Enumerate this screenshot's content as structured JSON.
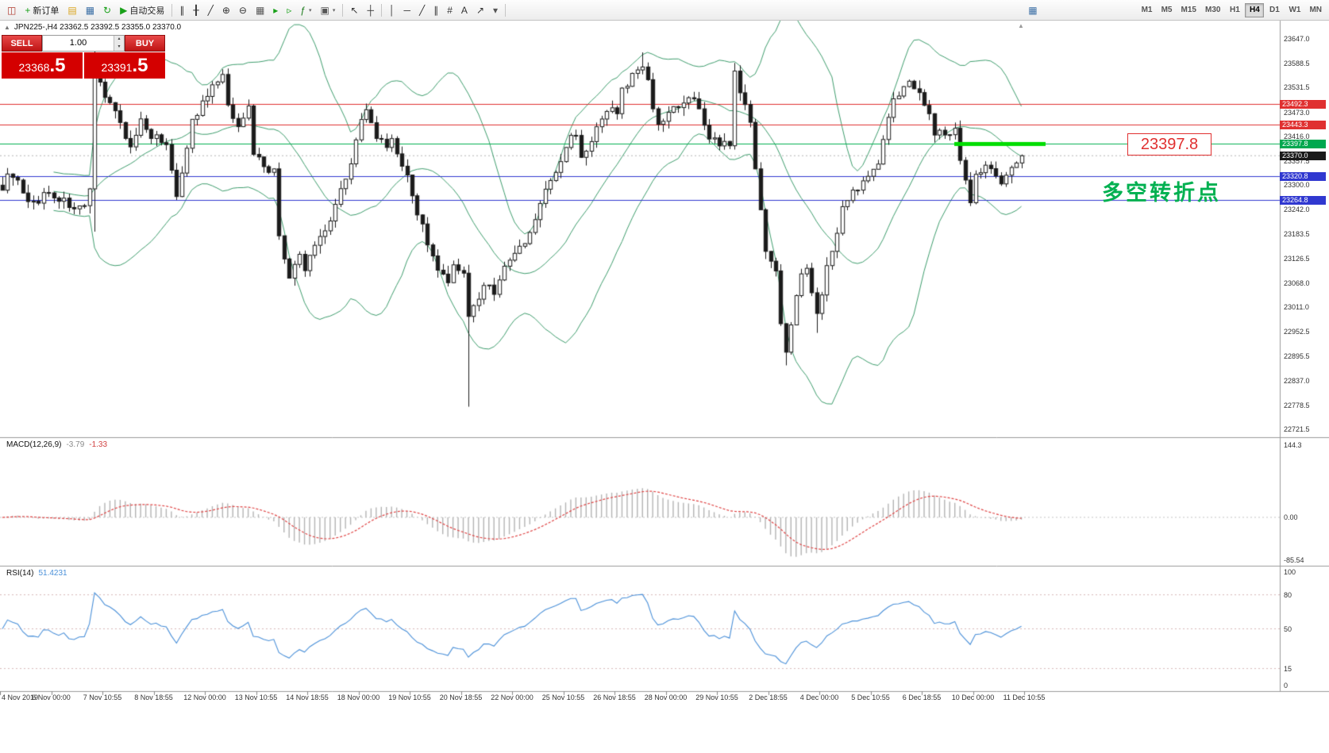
{
  "toolbar": {
    "items": [
      {
        "name": "chart-window-icon",
        "glyph": "◫",
        "color": "#b03a2e"
      },
      {
        "name": "new-order-button",
        "glyph": "+",
        "glyph_color": "#18a018",
        "label": "新订单"
      },
      {
        "name": "profiles-icon",
        "glyph": "▤",
        "color": "#d9a520"
      },
      {
        "name": "charts-grid-icon",
        "glyph": "▦",
        "color": "#3a6ea5"
      },
      {
        "name": "refresh-icon",
        "glyph": "↻",
        "color": "#18a018"
      },
      {
        "name": "autotrade-button",
        "glyph": "▶",
        "glyph_color": "#18a018",
        "label": "自动交易"
      },
      {
        "name": "sep"
      },
      {
        "name": "bar-chart-icon",
        "glyph": "∥",
        "color": "#333333"
      },
      {
        "name": "candlestick-chart-icon",
        "glyph": "╂",
        "color": "#333333"
      },
      {
        "name": "line-chart-icon",
        "glyph": "╱",
        "color": "#333333"
      },
      {
        "name": "zoom-in-icon",
        "glyph": "⊕",
        "color": "#333333"
      },
      {
        "name": "zoom-out-icon",
        "glyph": "⊖",
        "color": "#333333"
      },
      {
        "name": "grid-icon",
        "glyph": "▦",
        "color": "#555555"
      },
      {
        "name": "auto-scroll-icon",
        "glyph": "▸",
        "color": "#18a018"
      },
      {
        "name": "chart-shift-icon",
        "glyph": "▹",
        "color": "#18a018"
      },
      {
        "name": "indicators-icon",
        "glyph": "ƒ",
        "color": "#1a7a1a",
        "dropdown": true
      },
      {
        "name": "templates-icon",
        "glyph": "▣",
        "color": "#555555",
        "dropdown": true
      },
      {
        "name": "sep"
      },
      {
        "name": "cursor-icon",
        "glyph": "↖",
        "color": "#333333"
      },
      {
        "name": "crosshair-icon",
        "glyph": "┼",
        "color": "#333333"
      },
      {
        "name": "sep"
      },
      {
        "name": "vertical-line-icon",
        "glyph": "│",
        "color": "#333333"
      },
      {
        "name": "horizontal-line-icon",
        "glyph": "─",
        "color": "#333333"
      },
      {
        "name": "trendline-icon",
        "glyph": "╱",
        "color": "#333333"
      },
      {
        "name": "equidistant-channel-icon",
        "glyph": "∥",
        "color": "#333333"
      },
      {
        "name": "fibonacci-icon",
        "glyph": "#",
        "color": "#333333"
      },
      {
        "name": "text-tool-icon",
        "glyph": "A",
        "color": "#333333"
      },
      {
        "name": "arrow-tool-icon",
        "glyph": "↗",
        "color": "#333333"
      },
      {
        "name": "shapes-dropdown-icon",
        "glyph": "▾",
        "color": "#555555"
      },
      {
        "name": "sep"
      },
      {
        "name": "window-layout-icon",
        "glyph": "▦",
        "color": "#3a6ea5",
        "right": true
      }
    ],
    "timeframes": [
      "M1",
      "M5",
      "M15",
      "M30",
      "H1",
      "H4",
      "D1",
      "W1",
      "MN"
    ],
    "active_timeframe": "H4"
  },
  "chart": {
    "symbol_info": "JPN225-,H4 23362.5 23392.5 23355.0 23370.0"
  },
  "trade_panel": {
    "sell_label": "SELL",
    "buy_label": "BUY",
    "lot": "1.00",
    "sell_price_main": "23368",
    "sell_price_frac": ".5",
    "buy_price_main": "23391",
    "buy_price_frac": ".5"
  },
  "annotations": {
    "price_label": "23397.8",
    "cn_label": "多空转折点",
    "highlight_color": "#00dd00"
  },
  "macd": {
    "name": "MACD(12,26,9)",
    "value_main": "-3.79",
    "value_signal": "-1.33",
    "axis": [
      "144.3",
      "0.00",
      "-85.54"
    ]
  },
  "rsi": {
    "name": "RSI(14)",
    "value": "51.4231",
    "axis": [
      "100",
      "80",
      "50",
      "15",
      "0"
    ],
    "levels": [
      80,
      50,
      15
    ]
  },
  "price_axis": {
    "ticks": [
      23647.0,
      23588.5,
      23531.5,
      23473.0,
      23416.0,
      23357.5,
      23300.0,
      23242.0,
      23183.5,
      23126.5,
      23068.0,
      23011.0,
      22952.5,
      22895.5,
      22837.0,
      22778.5,
      22721.5
    ]
  },
  "time_axis": {
    "labels": [
      "4 Nov 2019",
      "6 Nov 00:00",
      "7 Nov 10:55",
      "8 Nov 18:55",
      "12 Nov 00:00",
      "13 Nov 10:55",
      "14 Nov 18:55",
      "18 Nov 00:00",
      "19 Nov 10:55",
      "20 Nov 18:55",
      "22 Nov 00:00",
      "25 Nov 10:55",
      "26 Nov 18:55",
      "28 Nov 00:00",
      "29 Nov 10:55",
      "2 Dec 18:55",
      "4 Dec 00:00",
      "5 Dec 10:55",
      "6 Dec 18:55",
      "10 Dec 00:00",
      "11 Dec 10:55"
    ]
  },
  "price_lines": [
    {
      "price": 23492.3,
      "label": "23492.3",
      "color": "#e03030",
      "tag_bg": "#e03030"
    },
    {
      "price": 23443.3,
      "label": "23443.3",
      "color": "#e03030",
      "tag_bg": "#e03030"
    },
    {
      "price": 23397.8,
      "label": "23397.8",
      "color": "#00b050",
      "tag_bg": "#00a84f"
    },
    {
      "price": 23370.0,
      "label": "23370.0",
      "color": "#aaaaaa",
      "tag_bg": "#1a1a1a",
      "current": true
    },
    {
      "price": 23320.8,
      "label": "23320.8",
      "color": "#3038d0",
      "tag_bg": "#3038d0"
    },
    {
      "price": 23264.8,
      "label": "23264.8",
      "color": "#3038d0",
      "tag_bg": "#3038d0"
    }
  ],
  "chart_data": {
    "type": "candlestick+indicators",
    "symbol": "JPN225-",
    "timeframe": "H4",
    "ohlc_header": {
      "open": 23362.5,
      "high": 23392.5,
      "low": 23355.0,
      "close": 23370.0
    },
    "ylim": [
      22721.5,
      23647.0
    ],
    "candles": {
      "count": 200,
      "price_path": [
        [
          0,
          23300
        ],
        [
          2,
          23330
        ],
        [
          5,
          23250
        ],
        [
          9,
          23285
        ],
        [
          12,
          23260
        ],
        [
          16,
          23240
        ],
        [
          17,
          23280
        ],
        [
          18,
          23560
        ],
        [
          21,
          23500
        ],
        [
          24,
          23420
        ],
        [
          25,
          23390
        ],
        [
          27,
          23450
        ],
        [
          29,
          23400
        ],
        [
          30,
          23430
        ],
        [
          32,
          23390
        ],
        [
          34,
          23280
        ],
        [
          37,
          23450
        ],
        [
          41,
          23530
        ],
        [
          43,
          23560
        ],
        [
          44,
          23480
        ],
        [
          46,
          23450
        ],
        [
          48,
          23480
        ],
        [
          49,
          23380
        ],
        [
          51,
          23350
        ],
        [
          53,
          23330
        ],
        [
          54,
          23180
        ],
        [
          56,
          23080
        ],
        [
          58,
          23130
        ],
        [
          59,
          23100
        ],
        [
          61,
          23160
        ],
        [
          62,
          23180
        ],
        [
          64,
          23220
        ],
        [
          66,
          23290
        ],
        [
          68,
          23360
        ],
        [
          70,
          23450
        ],
        [
          71,
          23470
        ],
        [
          73,
          23420
        ],
        [
          75,
          23380
        ],
        [
          76,
          23400
        ],
        [
          78,
          23350
        ],
        [
          80,
          23280
        ],
        [
          82,
          23200
        ],
        [
          83,
          23150
        ],
        [
          85,
          23100
        ],
        [
          87,
          23060
        ],
        [
          88,
          23120
        ],
        [
          90,
          23090
        ],
        [
          91,
          22990
        ],
        [
          93,
          23030
        ],
        [
          94,
          23070
        ],
        [
          96,
          23050
        ],
        [
          98,
          23100
        ],
        [
          99,
          23120
        ],
        [
          101,
          23150
        ],
        [
          103,
          23180
        ],
        [
          105,
          23260
        ],
        [
          108,
          23330
        ],
        [
          110,
          23390
        ],
        [
          112,
          23430
        ],
        [
          113,
          23360
        ],
        [
          115,
          23410
        ],
        [
          117,
          23450
        ],
        [
          118,
          23470
        ],
        [
          120,
          23480
        ],
        [
          121,
          23520
        ],
        [
          123,
          23560
        ],
        [
          125,
          23590
        ],
        [
          127,
          23490
        ],
        [
          128,
          23450
        ],
        [
          130,
          23470
        ],
        [
          132,
          23480
        ],
        [
          133,
          23490
        ],
        [
          135,
          23505
        ],
        [
          137,
          23440
        ],
        [
          138,
          23420
        ],
        [
          140,
          23400
        ],
        [
          142,
          23390
        ],
        [
          143,
          23560
        ],
        [
          144,
          23530
        ],
        [
          146,
          23440
        ],
        [
          148,
          23250
        ],
        [
          149,
          23150
        ],
        [
          151,
          23090
        ],
        [
          152,
          22980
        ],
        [
          153,
          22910
        ],
        [
          155,
          23050
        ],
        [
          157,
          23110
        ],
        [
          158,
          23050
        ],
        [
          159,
          22990
        ],
        [
          161,
          23110
        ],
        [
          163,
          23180
        ],
        [
          164,
          23250
        ],
        [
          166,
          23300
        ],
        [
          167,
          23280
        ],
        [
          169,
          23330
        ],
        [
          171,
          23360
        ],
        [
          172,
          23410
        ],
        [
          174,
          23500
        ],
        [
          176,
          23530
        ],
        [
          177,
          23540
        ],
        [
          179,
          23520
        ],
        [
          181,
          23480
        ],
        [
          182,
          23430
        ],
        [
          184,
          23420
        ],
        [
          186,
          23440
        ],
        [
          187,
          23350
        ],
        [
          189,
          23270
        ],
        [
          190,
          23320
        ],
        [
          192,
          23350
        ],
        [
          194,
          23330
        ],
        [
          195,
          23300
        ],
        [
          197,
          23340
        ],
        [
          199,
          23370
        ]
      ],
      "wick_overrides": {
        "18": {
          "high": 23640,
          "low": 23190
        },
        "91": {
          "low": 22775
        },
        "125": {
          "high": 23615
        },
        "143": {
          "high": 23590
        },
        "153": {
          "low": 22873
        },
        "159": {
          "low": 22950
        }
      }
    },
    "overlays": {
      "bollinger": {
        "period": 20,
        "deviation": 2,
        "color": "#3f9e6e"
      }
    },
    "indicators": [
      {
        "type": "MACD",
        "params": [
          12,
          26,
          9
        ],
        "values": [
          -3.79,
          -1.33
        ],
        "range": [
          -85.54,
          144.3
        ],
        "histogram_color": "#b4b4b4",
        "signal_color": "#e04545"
      },
      {
        "type": "RSI",
        "params": [
          14
        ],
        "value": 51.4231,
        "range": [
          0,
          100
        ],
        "levels": [
          80,
          50,
          15
        ],
        "color": "#4a90d9"
      }
    ]
  }
}
